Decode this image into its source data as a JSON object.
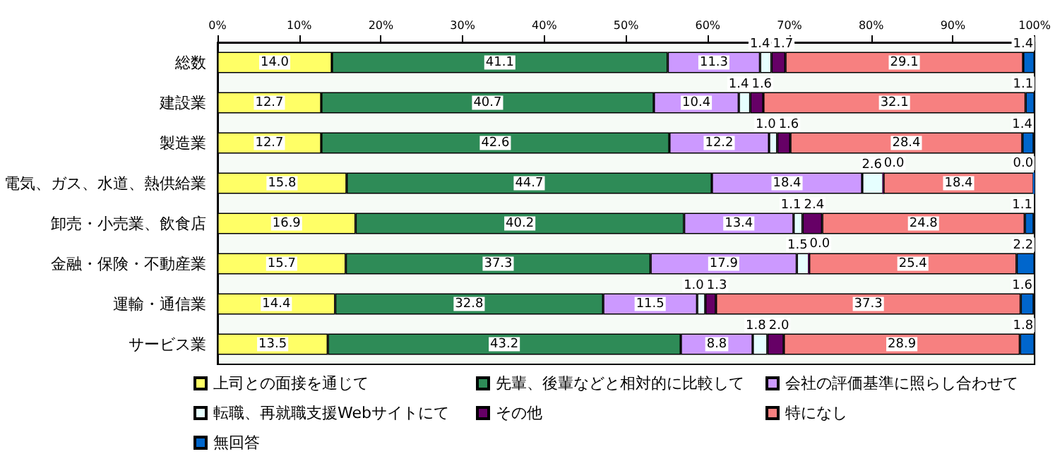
{
  "chart_data": {
    "type": "bar",
    "orientation": "horizontal",
    "stacked": true,
    "grid": false,
    "legend": "bottom",
    "categories": [
      "総数",
      "建設業",
      "製造業",
      "電気、ガス、水道、熱供給業",
      "卸売・小売業、飲食店",
      "金融・保険・不動産業",
      "運輸・通信業",
      "サービス業"
    ],
    "xlim": [
      0,
      100
    ],
    "xticks": [
      {
        "value": 0,
        "label": "0%"
      },
      {
        "value": 10,
        "label": "10%"
      },
      {
        "value": 20,
        "label": "20%"
      },
      {
        "value": 30,
        "label": "30%"
      },
      {
        "value": 40,
        "label": "40%"
      },
      {
        "value": 50,
        "label": "50%"
      },
      {
        "value": 60,
        "label": "60%"
      },
      {
        "value": 70,
        "label": "70%"
      },
      {
        "value": 80,
        "label": "80%"
      },
      {
        "value": 90,
        "label": "90%"
      },
      {
        "value": 100,
        "label": "100%"
      }
    ],
    "series": [
      {
        "name": "上司との面接を通じて",
        "color": "#ffff66",
        "values": [
          14.0,
          12.7,
          12.7,
          15.8,
          16.9,
          15.7,
          14.4,
          13.5
        ],
        "value_labels": [
          "14.0",
          "12.7",
          "12.7",
          "15.8",
          "16.9",
          "15.7",
          "14.4",
          "13.5"
        ]
      },
      {
        "name": "先輩、後輩などと相対的に比較して",
        "color": "#2e8b57",
        "values": [
          41.1,
          40.7,
          42.6,
          44.7,
          40.2,
          37.3,
          32.8,
          43.2
        ],
        "value_labels": [
          "41.1",
          "40.7",
          "42.6",
          "44.7",
          "40.2",
          "37.3",
          "32.8",
          "43.2"
        ]
      },
      {
        "name": "会社の評価基準に照らし合わせて",
        "color": "#cc99ff",
        "values": [
          11.3,
          10.4,
          12.2,
          18.4,
          13.4,
          17.9,
          11.5,
          8.8
        ],
        "value_labels": [
          "11.3",
          "10.4",
          "12.2",
          "18.4",
          "13.4",
          "17.9",
          "11.5",
          "8.8"
        ]
      },
      {
        "name": "転職、再就職支援Webサイトにて",
        "color": "#e6ffff",
        "values": [
          1.4,
          1.4,
          1.0,
          2.6,
          1.1,
          1.5,
          1.0,
          1.8
        ],
        "value_labels": [
          "1.4",
          "1.4",
          "1.0",
          "2.6",
          "1.1",
          "1.5",
          "1.0",
          "1.8"
        ]
      },
      {
        "name": "その他",
        "color": "#660066",
        "values": [
          1.7,
          1.6,
          1.6,
          0.0,
          2.4,
          0.0,
          1.3,
          2.0
        ],
        "value_labels": [
          "1.7",
          "1.6",
          "1.6",
          "0.0",
          "2.4",
          "0.0",
          "1.3",
          "2.0"
        ]
      },
      {
        "name": "特になし",
        "color": "#f78080",
        "values": [
          29.1,
          32.1,
          28.4,
          18.4,
          24.8,
          25.4,
          37.3,
          28.9
        ],
        "value_labels": [
          "29.1",
          "32.1",
          "28.4",
          "18.4",
          "24.8",
          "25.4",
          "37.3",
          "28.9"
        ]
      },
      {
        "name": "無回答",
        "color": "#0066cc",
        "values": [
          1.4,
          1.1,
          1.4,
          0.0,
          1.1,
          2.2,
          1.6,
          1.8
        ],
        "value_labels": [
          "1.4",
          "1.1",
          "1.4",
          "0.0",
          "1.1",
          "2.2",
          "1.6",
          "1.8"
        ]
      }
    ]
  }
}
